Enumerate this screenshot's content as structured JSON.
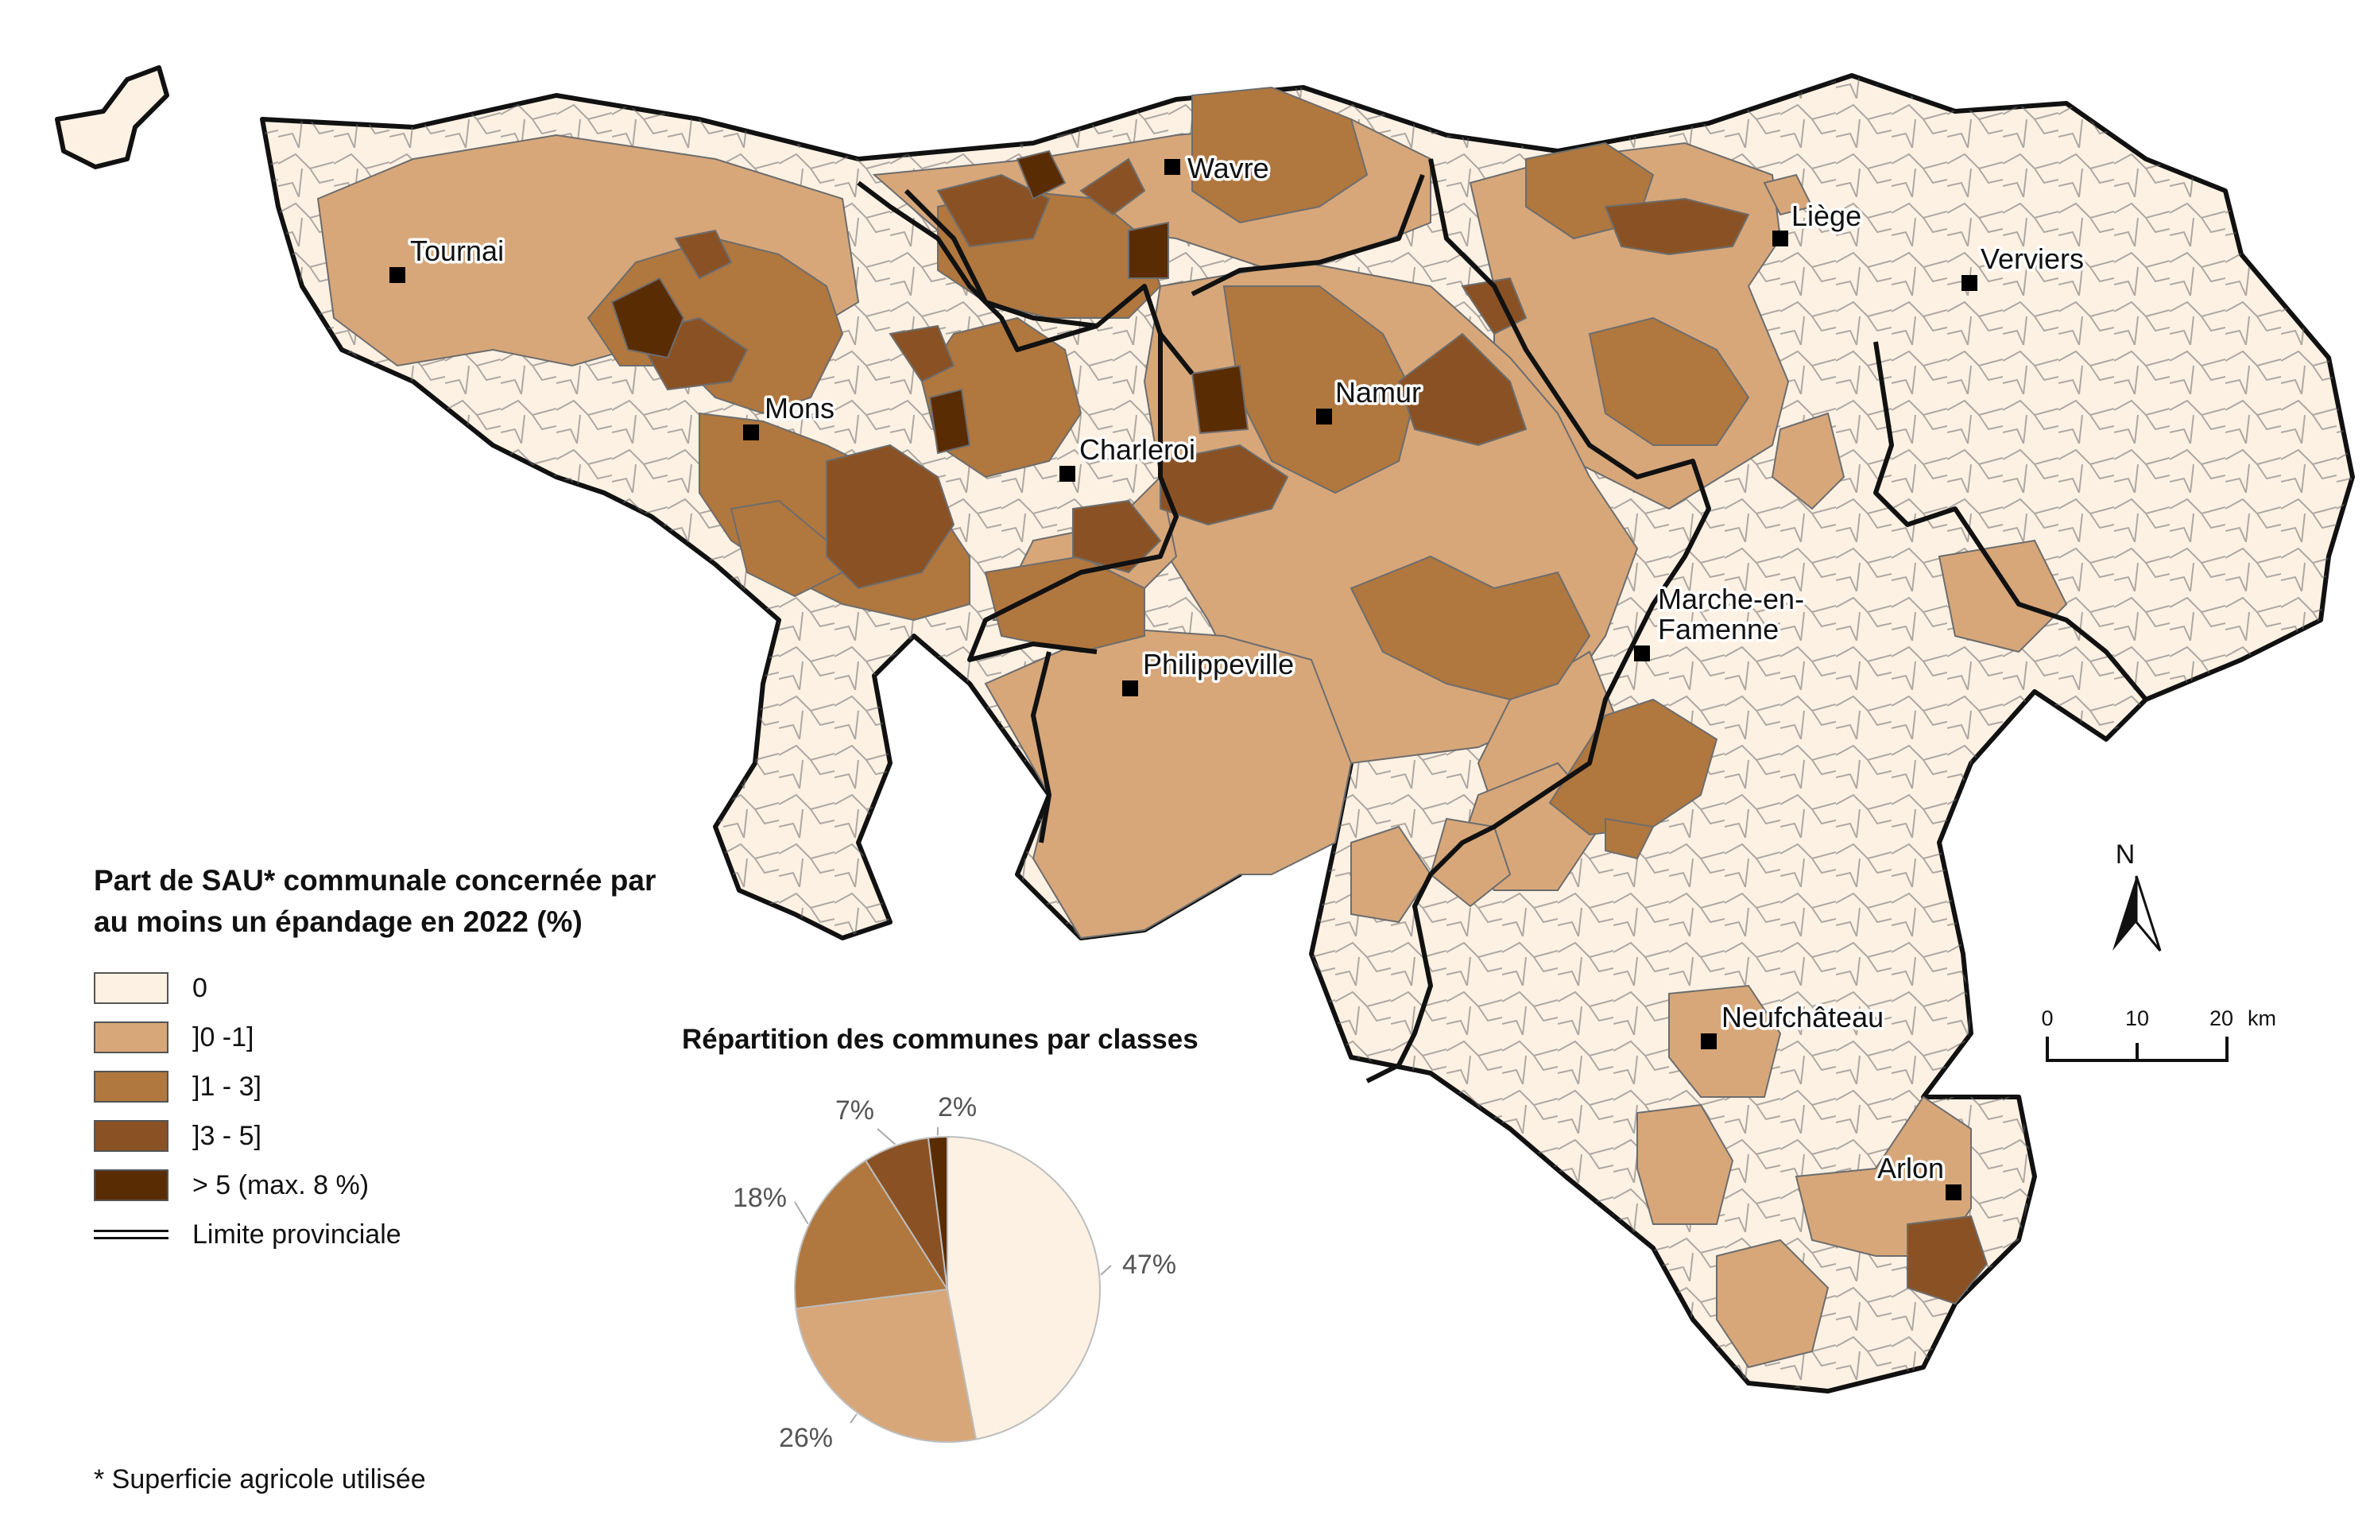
{
  "cities": [
    {
      "name": "Tournai",
      "label": "Tournai"
    },
    {
      "name": "Wavre",
      "label": "Wavre"
    },
    {
      "name": "Liege",
      "label": "Liège"
    },
    {
      "name": "Verviers",
      "label": "Verviers"
    },
    {
      "name": "Mons",
      "label": "Mons"
    },
    {
      "name": "Namur",
      "label": "Namur"
    },
    {
      "name": "Charleroi",
      "label": "Charleroi"
    },
    {
      "name": "Philippeville",
      "label": "Philippeville"
    },
    {
      "name": "Marche",
      "label": "Marche-en-",
      "label2": "Famenne"
    },
    {
      "name": "Neufchateau",
      "label": "Neufchâteau"
    },
    {
      "name": "Arlon",
      "label": "Arlon"
    }
  ],
  "legend": {
    "title": "Part de SAU* communale concernée par au moins un épandage en 2022 (%)",
    "classes": [
      {
        "label": "0",
        "color": "#fdf1e3"
      },
      {
        "label": "]0 -1]",
        "color": "#d7a77a"
      },
      {
        "label": "]1 - 3]",
        "color": "#b0773f"
      },
      {
        "label": "]3 - 5]",
        "color": "#8a5224"
      },
      {
        "label": "> 5 (max. 8 %)",
        "color": "#5a2c04"
      }
    ],
    "province_label": "Limite provinciale"
  },
  "pie": {
    "title": "Répartition des communes par classes",
    "slices": [
      {
        "label": "47%",
        "value": 47,
        "color": "#fdf1e3"
      },
      {
        "label": "26%",
        "value": 26,
        "color": "#d7a77a"
      },
      {
        "label": "18%",
        "value": 18,
        "color": "#b0773f"
      },
      {
        "label": "7%",
        "value": 7,
        "color": "#8a5224"
      },
      {
        "label": "2%",
        "value": 2,
        "color": "#5a2c04"
      }
    ]
  },
  "scale": {
    "ticks": [
      "0",
      "10",
      "20"
    ],
    "unit": "km"
  },
  "north": "N",
  "footnote": "* Superficie agricole utilisée"
}
